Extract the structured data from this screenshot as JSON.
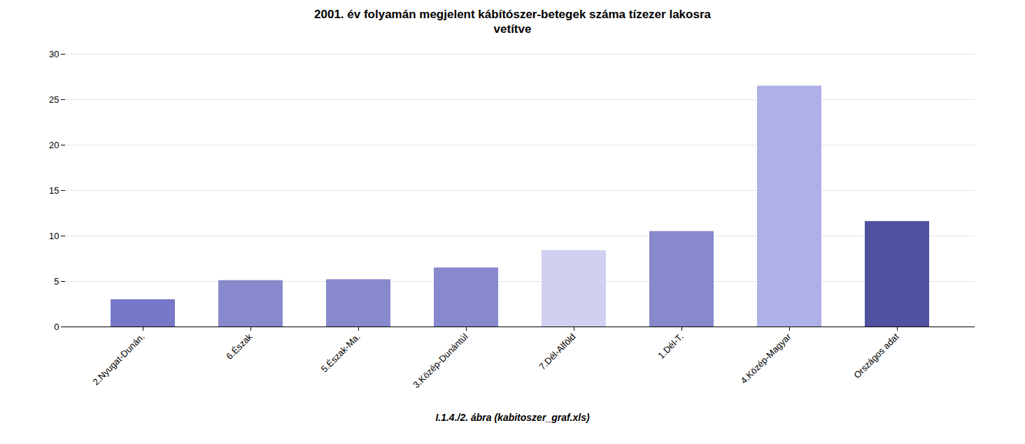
{
  "chart_data": {
    "type": "bar",
    "title": "2001. év folyamán megjelent kábítószer-betegek száma tízezer lakosra\nvetítve",
    "categories": [
      "2.Nyugat-Dunán.",
      "6.Észak",
      "5.Észak-Ma.",
      "3.Közép-Dunántúl",
      "7.Dél-Alföld",
      "1.Dél-T.",
      "4.Közép-Magyar",
      "Országos adat"
    ],
    "values": [
      3.0,
      5.1,
      5.2,
      6.5,
      8.4,
      10.5,
      26.5,
      11.6
    ],
    "colors": [
      "#7878c8",
      "#8888cc",
      "#8888cc",
      "#8888cc",
      "#d0d0f0",
      "#8888cc",
      "#b0b0e8",
      "#5050a0"
    ],
    "ylim": [
      0,
      30
    ],
    "yticks": [
      0,
      5,
      10,
      15,
      20,
      25,
      30
    ],
    "grid": true,
    "caption": "I.1.4./2. ábra (kabitoszer_graf.xls)"
  }
}
